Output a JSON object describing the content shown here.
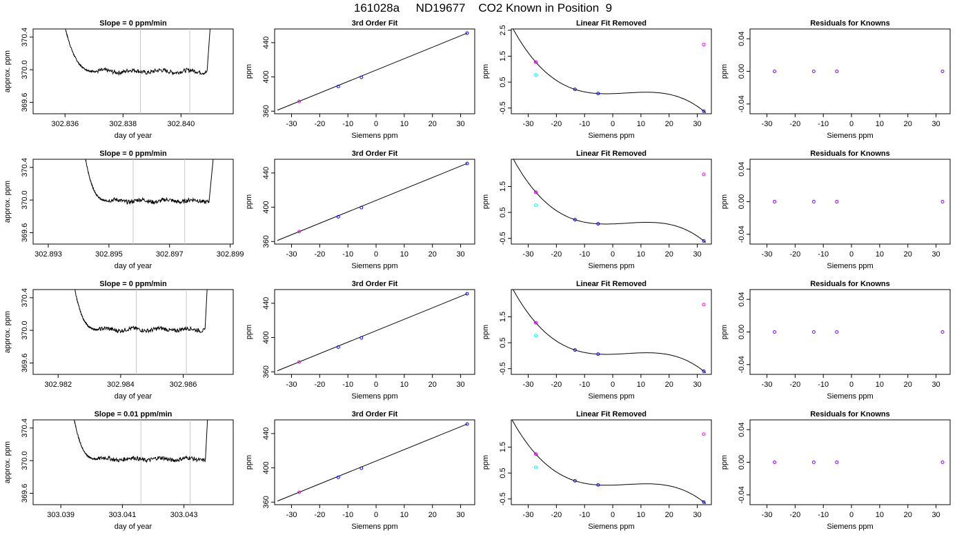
{
  "page_title": "161028a     ND19677    CO2 Known in Position  9",
  "colors": {
    "trace": "#000000",
    "marker_line": "#c8c8c8",
    "known_point": "#0000ff",
    "unknown_point": "#ff00ff",
    "other_point": "#00ffff",
    "resid_point": "#8000ff"
  },
  "chart_data": [
    {
      "row": 1,
      "type": "line",
      "title": "Slope =  0  ppm/min",
      "xlabel": "day of year",
      "ylabel": "approx. ppm",
      "xticks": [
        "302.836",
        "302.838",
        "302.840"
      ],
      "yticks": [
        "369.6",
        "370.0",
        "370.4"
      ],
      "xlim": [
        302.8349,
        302.8418
      ],
      "ylim": [
        369.46,
        370.5
      ],
      "x_start": 302.8357,
      "x_end": 302.8412,
      "plateau_start": 302.8371,
      "plateau_end": 302.8409,
      "level": 369.98,
      "markers_x": [
        302.8386,
        302.8403
      ]
    },
    {
      "row": 1,
      "type": "line",
      "title": "3rd Order Fit",
      "xlabel": "Siemens ppm",
      "ylabel": "ppm",
      "xticks": [
        "-30",
        "-20",
        "-10",
        "0",
        "10",
        "20",
        "30"
      ],
      "yticks": [
        "360",
        "400",
        "440"
      ],
      "xlim": [
        -36,
        35
      ],
      "ylim": [
        357,
        456
      ],
      "points": [
        [
          -27.3,
          371.5
        ],
        [
          -13.4,
          388.9
        ],
        [
          -5.2,
          399.6
        ],
        [
          32.3,
          451.1
        ]
      ]
    },
    {
      "row": 1,
      "type": "scatter",
      "title": "Linear Fit Removed",
      "xlabel": "Siemens ppm",
      "ylabel": "ppm",
      "xticks": [
        "-30",
        "-20",
        "-10",
        "0",
        "10",
        "20",
        "30"
      ],
      "yticks": [
        "-0.5",
        "0.5",
        "1.5",
        "2.5"
      ],
      "xlim": [
        -36,
        35
      ],
      "ylim": [
        -0.72,
        2.55
      ],
      "points": [
        [
          -27.3,
          1.27
        ],
        [
          -13.4,
          0.22
        ],
        [
          -5.2,
          0.06
        ],
        [
          32.3,
          -0.62
        ]
      ],
      "extra": [
        [
          -27.3,
          0.78
        ],
        [
          32.3,
          1.95
        ]
      ]
    },
    {
      "row": 1,
      "type": "scatter",
      "title": "Residuals for Knowns",
      "xlabel": "Siemens ppm",
      "ylabel": "ppm",
      "xticks": [
        "-30",
        "-20",
        "-10",
        "0",
        "10",
        "20",
        "30"
      ],
      "yticks": [
        "-0.04",
        "0.00",
        "0.04"
      ],
      "xlim": [
        -36,
        35
      ],
      "ylim": [
        -0.052,
        0.052
      ],
      "points": [
        [
          -27.3,
          0
        ],
        [
          -13.4,
          0
        ],
        [
          -5.2,
          0
        ],
        [
          32.3,
          0
        ]
      ]
    },
    {
      "row": 2,
      "type": "line",
      "title": "Slope =  0  ppm/min",
      "xlabel": "day of year",
      "ylabel": "approx. ppm",
      "xticks": [
        "302.893",
        "302.895",
        "302.897",
        "302.899"
      ],
      "yticks": [
        "369.6",
        "370.0",
        "370.4"
      ],
      "xlim": [
        302.8925,
        302.8991
      ],
      "ylim": [
        369.46,
        370.5
      ],
      "x_start": 302.894,
      "x_end": 302.8987,
      "plateau_start": 302.895,
      "plateau_end": 302.8983,
      "level": 369.99,
      "markers_x": [
        302.8958,
        302.8975
      ]
    },
    {
      "row": 2,
      "type": "line",
      "title": "3rd Order Fit",
      "xlabel": "Siemens ppm",
      "ylabel": "ppm",
      "xticks": [
        "-30",
        "-20",
        "-10",
        "0",
        "10",
        "20",
        "30"
      ],
      "yticks": [
        "360",
        "400",
        "440"
      ],
      "xlim": [
        -36,
        35
      ],
      "ylim": [
        357,
        456
      ],
      "points": [
        [
          -27.3,
          371.5
        ],
        [
          -13.4,
          388.9
        ],
        [
          -5.2,
          399.6
        ],
        [
          32.3,
          451.1
        ]
      ]
    },
    {
      "row": 2,
      "type": "scatter",
      "title": "Linear Fit Removed",
      "xlabel": "Siemens ppm",
      "ylabel": "ppm",
      "xticks": [
        "-30",
        "-20",
        "-10",
        "0",
        "10",
        "20",
        "30"
      ],
      "yticks": [
        "-0.5",
        "0.5",
        "1.5"
      ],
      "xlim": [
        -36,
        35
      ],
      "ylim": [
        -0.72,
        2.55
      ],
      "points": [
        [
          -27.3,
          1.28
        ],
        [
          -13.4,
          0.22
        ],
        [
          -5.2,
          0.06
        ],
        [
          32.3,
          -0.6
        ]
      ],
      "extra": [
        [
          -27.3,
          0.78
        ],
        [
          32.3,
          1.97
        ]
      ]
    },
    {
      "row": 2,
      "type": "scatter",
      "title": "Residuals for Knowns",
      "xlabel": "Siemens ppm",
      "ylabel": "ppm",
      "xticks": [
        "-30",
        "-20",
        "-10",
        "0",
        "10",
        "20",
        "30"
      ],
      "yticks": [
        "-0.04",
        "0.00",
        "0.04"
      ],
      "xlim": [
        -36,
        35
      ],
      "ylim": [
        -0.052,
        0.052
      ],
      "points": [
        [
          -27.3,
          0
        ],
        [
          -13.4,
          0
        ],
        [
          -5.2,
          0
        ],
        [
          32.3,
          0
        ]
      ]
    },
    {
      "row": 3,
      "type": "line",
      "title": "Slope =  0  ppm/min",
      "xlabel": "day of year",
      "ylabel": "approx. ppm",
      "xticks": [
        "302.982",
        "302.984",
        "302.986"
      ],
      "yticks": [
        "369.6",
        "370.0",
        "370.4"
      ],
      "xlim": [
        302.9812,
        302.9876
      ],
      "ylim": [
        369.46,
        370.5
      ],
      "x_start": 302.9823,
      "x_end": 302.9869,
      "plateau_start": 302.9833,
      "plateau_end": 302.9867,
      "level": 370.01,
      "markers_x": [
        302.9845,
        302.9861
      ]
    },
    {
      "row": 3,
      "type": "line",
      "title": "3rd Order Fit",
      "xlabel": "Siemens ppm",
      "ylabel": "ppm",
      "xticks": [
        "-30",
        "-20",
        "-10",
        "0",
        "10",
        "20",
        "30"
      ],
      "yticks": [
        "360",
        "400",
        "440"
      ],
      "xlim": [
        -36,
        35
      ],
      "ylim": [
        357,
        456
      ],
      "points": [
        [
          -27.3,
          371.5
        ],
        [
          -13.4,
          388.9
        ],
        [
          -5.2,
          399.6
        ],
        [
          32.3,
          451.1
        ]
      ]
    },
    {
      "row": 3,
      "type": "scatter",
      "title": "Linear Fit Removed",
      "xlabel": "Siemens ppm",
      "ylabel": "ppm",
      "xticks": [
        "-30",
        "-20",
        "-10",
        "0",
        "10",
        "20",
        "30"
      ],
      "yticks": [
        "-0.5",
        "0.5",
        "1.5"
      ],
      "xlim": [
        -36,
        35
      ],
      "ylim": [
        -0.72,
        2.55
      ],
      "points": [
        [
          -27.3,
          1.27
        ],
        [
          -13.4,
          0.22
        ],
        [
          -5.2,
          0.06
        ],
        [
          32.3,
          -0.6
        ]
      ],
      "extra": [
        [
          -27.3,
          0.78
        ],
        [
          32.3,
          1.97
        ]
      ]
    },
    {
      "row": 3,
      "type": "scatter",
      "title": "Residuals for Knowns",
      "xlabel": "Siemens ppm",
      "ylabel": "ppm",
      "xticks": [
        "-30",
        "-20",
        "-10",
        "0",
        "10",
        "20",
        "30"
      ],
      "yticks": [
        "-0.04",
        "0.00",
        "0.04"
      ],
      "xlim": [
        -36,
        35
      ],
      "ylim": [
        -0.052,
        0.052
      ],
      "points": [
        [
          -27.3,
          0
        ],
        [
          -13.4,
          0
        ],
        [
          -5.2,
          0
        ],
        [
          32.3,
          0
        ]
      ]
    },
    {
      "row": 4,
      "type": "line",
      "title": "Slope =  0.01  ppm/min",
      "xlabel": "day of year",
      "ylabel": "approx. ppm",
      "xticks": [
        "303.039",
        "303.041",
        "303.043"
      ],
      "yticks": [
        "369.6",
        "370.0",
        "370.4"
      ],
      "xlim": [
        303.0381,
        303.0446
      ],
      "ylim": [
        369.46,
        370.5
      ],
      "x_start": 303.0392,
      "x_end": 303.0439,
      "plateau_start": 303.0402,
      "plateau_end": 303.0437,
      "level": 370.02,
      "markers_x": [
        303.0416,
        303.0432
      ]
    },
    {
      "row": 4,
      "type": "line",
      "title": "3rd Order Fit",
      "xlabel": "Siemens ppm",
      "ylabel": "ppm",
      "xticks": [
        "-30",
        "-20",
        "-10",
        "0",
        "10",
        "20",
        "30"
      ],
      "yticks": [
        "360",
        "400",
        "440"
      ],
      "xlim": [
        -36,
        35
      ],
      "ylim": [
        357,
        456
      ],
      "points": [
        [
          -27.3,
          371.5
        ],
        [
          -13.4,
          388.9
        ],
        [
          -5.2,
          399.6
        ],
        [
          32.3,
          451.1
        ]
      ]
    },
    {
      "row": 4,
      "type": "scatter",
      "title": "Linear Fit Removed",
      "xlabel": "Siemens ppm",
      "ylabel": "ppm",
      "xticks": [
        "-30",
        "-20",
        "-10",
        "0",
        "10",
        "20",
        "30"
      ],
      "yticks": [
        "-0.5",
        "0.5",
        "1.5"
      ],
      "xlim": [
        -36,
        35
      ],
      "ylim": [
        -0.72,
        2.55
      ],
      "points": [
        [
          -27.3,
          1.23
        ],
        [
          -13.4,
          0.2
        ],
        [
          -5.2,
          0.04
        ],
        [
          32.3,
          -0.62
        ]
      ],
      "extra": [
        [
          -27.3,
          0.72
        ],
        [
          32.3,
          2.0
        ]
      ]
    },
    {
      "row": 4,
      "type": "scatter",
      "title": "Residuals for Knowns",
      "xlabel": "Siemens ppm",
      "ylabel": "ppm",
      "xticks": [
        "-30",
        "-20",
        "-10",
        "0",
        "10",
        "20",
        "30"
      ],
      "yticks": [
        "-0.04",
        "0.00",
        "0.04"
      ],
      "xlim": [
        -36,
        35
      ],
      "ylim": [
        -0.052,
        0.052
      ],
      "points": [
        [
          -27.3,
          0
        ],
        [
          -13.4,
          0
        ],
        [
          -5.2,
          0
        ],
        [
          32.3,
          0
        ]
      ]
    }
  ]
}
